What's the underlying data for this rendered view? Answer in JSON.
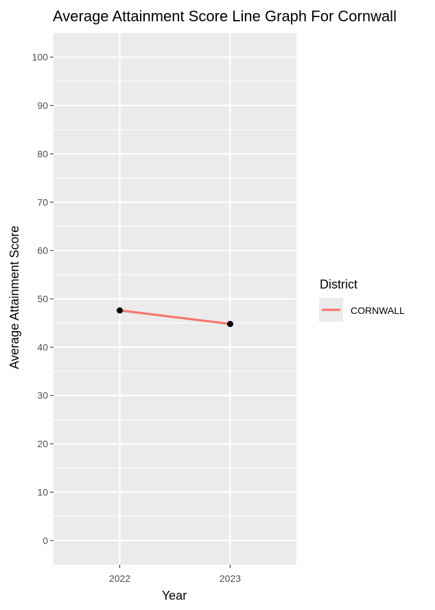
{
  "chart_data": {
    "type": "line",
    "title": "Average Attainment Score Line Graph For Cornwall",
    "xlabel": "Year",
    "ylabel": "Average Attainment Score",
    "categories": [
      "2022",
      "2023"
    ],
    "series": [
      {
        "name": "CORNWALL",
        "values": [
          47.6,
          44.8
        ],
        "color": "#f8766d"
      }
    ],
    "ylim": [
      -5,
      105
    ],
    "y_ticks": [
      0,
      10,
      20,
      30,
      40,
      50,
      60,
      70,
      80,
      90,
      100
    ],
    "y_tick_labels": [
      "0",
      "10",
      "20",
      "30",
      "40",
      "50",
      "60",
      "70",
      "80",
      "90",
      "100"
    ],
    "grid": true,
    "point_color": "#000000",
    "panel_color": "#ebebeb",
    "gridline_color": "#ffffff",
    "legend": {
      "title": "District",
      "position": "right"
    }
  }
}
